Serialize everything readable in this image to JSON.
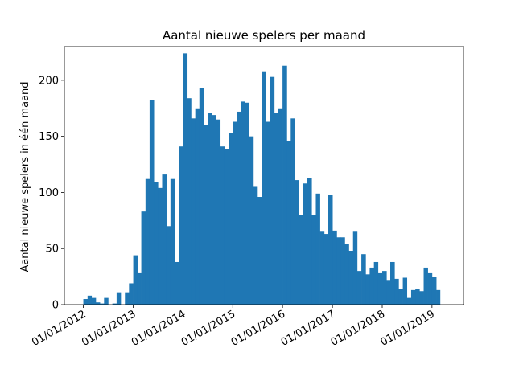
{
  "chart_data": {
    "type": "bar",
    "title": "Aantal nieuwe spelers per maand",
    "xlabel": "",
    "ylabel": "Aantal nieuwe spelers in één maand",
    "ylim": [
      0,
      230
    ],
    "xlim": [
      "2011-08-15",
      "2019-08-20"
    ],
    "yticks": [
      0,
      50,
      100,
      150,
      200
    ],
    "xticks": [
      {
        "date": "2012-01-01",
        "label": "01/01/2012"
      },
      {
        "date": "2013-01-01",
        "label": "01/01/2013"
      },
      {
        "date": "2014-01-01",
        "label": "01/01/2014"
      },
      {
        "date": "2015-01-01",
        "label": "01/01/2015"
      },
      {
        "date": "2016-01-01",
        "label": "01/01/2016"
      },
      {
        "date": "2017-01-01",
        "label": "01/01/2017"
      },
      {
        "date": "2018-01-01",
        "label": "01/01/2018"
      },
      {
        "date": "2019-01-01",
        "label": "01/01/2019"
      }
    ],
    "bar_color": "#1f77b4",
    "start_month": "2012-01",
    "values": [
      5,
      8,
      6,
      2,
      1,
      6,
      0,
      1,
      11,
      0,
      11,
      19,
      44,
      28,
      83,
      112,
      182,
      109,
      104,
      116,
      70,
      112,
      38,
      141,
      224,
      184,
      166,
      175,
      193,
      160,
      171,
      169,
      165,
      141,
      139,
      153,
      163,
      172,
      181,
      180,
      150,
      105,
      96,
      208,
      163,
      203,
      171,
      175,
      213,
      146,
      166,
      111,
      80,
      108,
      113,
      80,
      99,
      65,
      63,
      98,
      66,
      60,
      60,
      54,
      48,
      65,
      30,
      45,
      27,
      33,
      38,
      28,
      30,
      22,
      38,
      23,
      14,
      24,
      6,
      13,
      14,
      12,
      33,
      28,
      25,
      13
    ]
  }
}
